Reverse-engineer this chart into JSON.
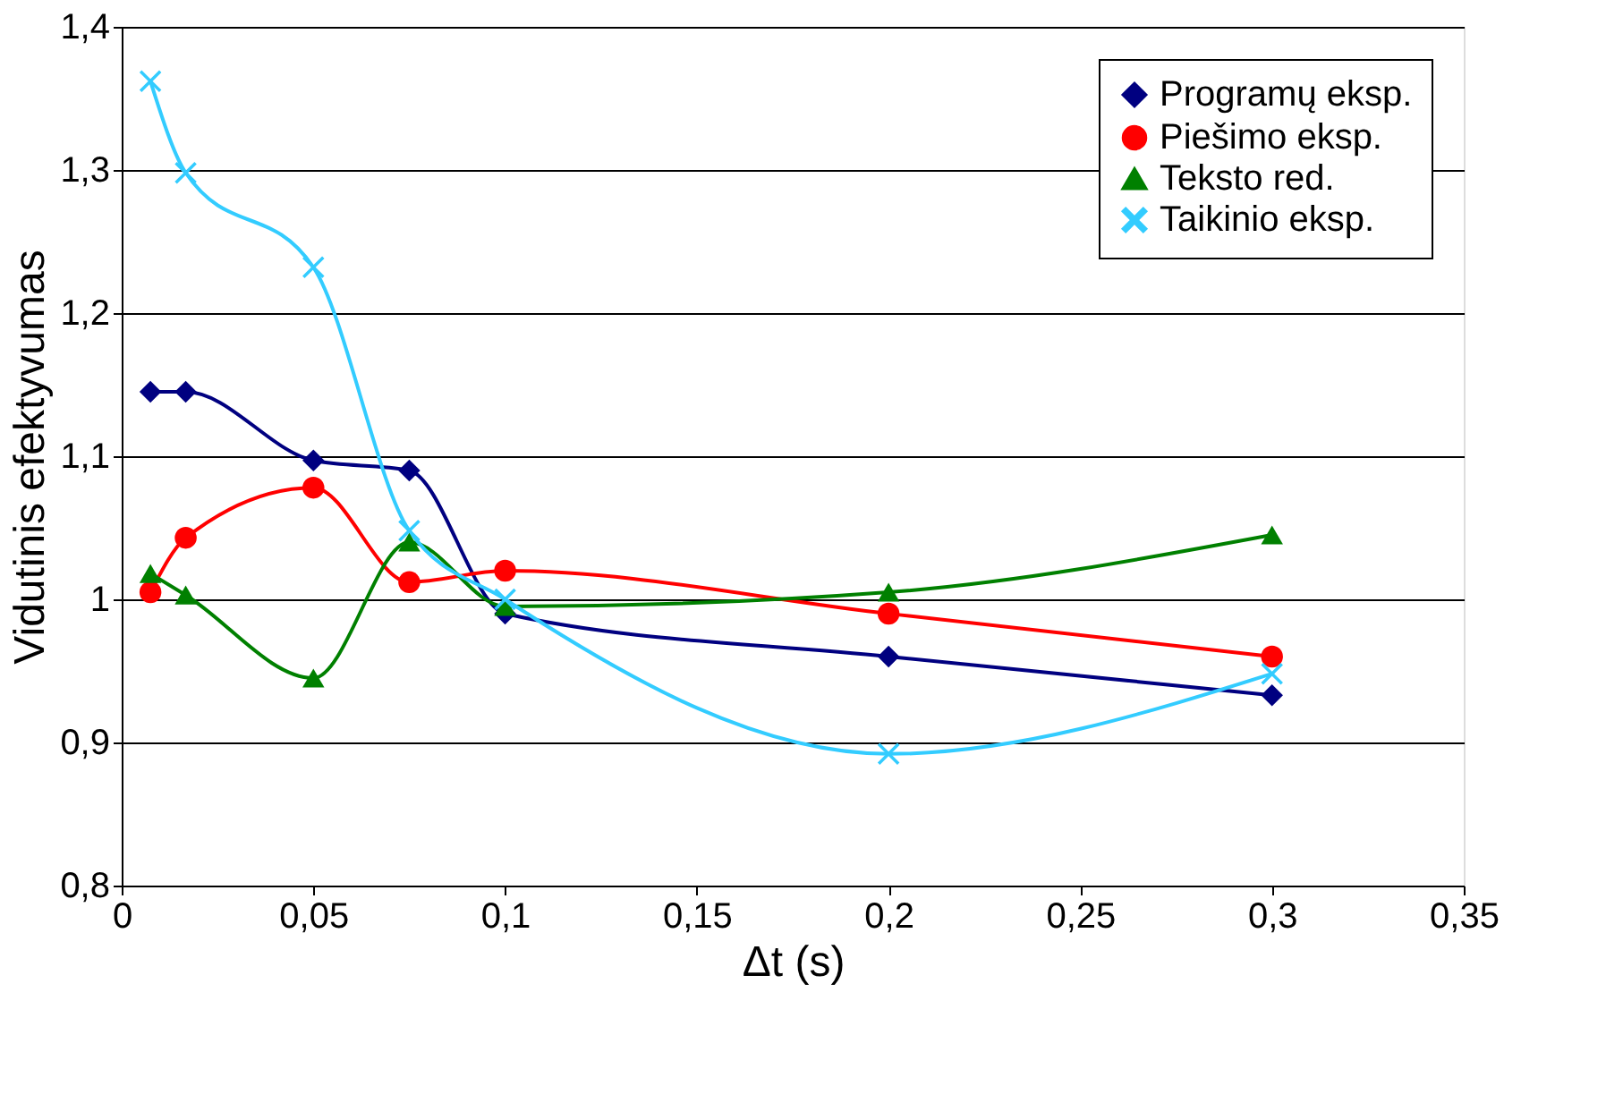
{
  "chart_data": {
    "type": "line",
    "xlabel": "Δt (s)",
    "ylabel": "Vidutinis efektyvumas",
    "x": [
      0.0075,
      0.0167,
      0.05,
      0.075,
      0.1,
      0.2,
      0.3
    ],
    "series": [
      {
        "name": "Programų eksp.",
        "color": "#000080",
        "marker": "diamond",
        "values": [
          1.145,
          1.145,
          1.097,
          1.09,
          0.99,
          0.96,
          0.933
        ]
      },
      {
        "name": "Piešimo eksp.",
        "color": "#ff0000",
        "marker": "circle",
        "values": [
          1.005,
          1.043,
          1.078,
          1.012,
          1.02,
          0.99,
          0.96
        ]
      },
      {
        "name": "Teksto red.",
        "color": "#008000",
        "marker": "triangle",
        "values": [
          1.018,
          1.003,
          0.945,
          1.04,
          0.995,
          1.005,
          1.045
        ]
      },
      {
        "name": "Taikinio eksp.",
        "color": "#33ccff",
        "marker": "cross",
        "values": [
          1.362,
          1.298,
          1.232,
          1.048,
          1.0,
          0.892,
          0.948
        ]
      }
    ],
    "xlim": [
      0,
      0.35
    ],
    "xticks": [
      0,
      {
        "value": 0.05,
        "label": "0,05"
      },
      {
        "value": 0.1,
        "label": "0,1"
      },
      {
        "value": 0.15,
        "label": "0,15"
      },
      {
        "value": 0.2,
        "label": "0,2"
      },
      {
        "value": 0.25,
        "label": "0,25"
      },
      {
        "value": 0.3,
        "label": "0,3"
      },
      {
        "value": 0.35,
        "label": "0,35"
      }
    ],
    "ylim": [
      0.8,
      1.4
    ],
    "yticks": [
      {
        "value": 0.8,
        "label": "0,8"
      },
      {
        "value": 0.9,
        "label": "0,9"
      },
      1,
      {
        "value": 1.1,
        "label": "1,1"
      },
      {
        "value": 1.2,
        "label": "1,2"
      },
      {
        "value": 1.3,
        "label": "1,3"
      },
      {
        "value": 1.4,
        "label": "1,4"
      }
    ],
    "grid": "y",
    "legend": "top right",
    "line_style": "solid"
  }
}
